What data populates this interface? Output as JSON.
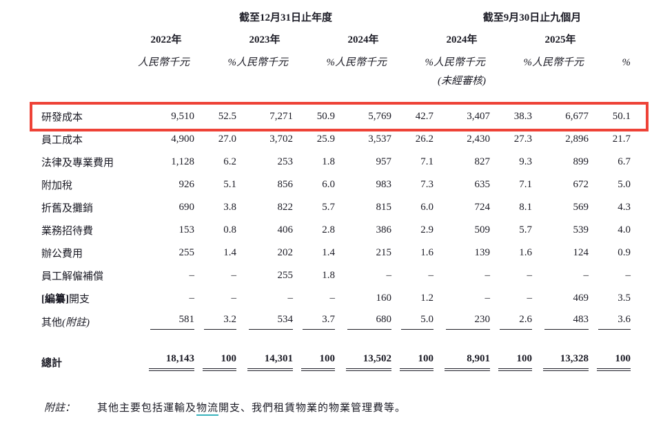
{
  "colors": {
    "text": "#1a1a24",
    "highlight_box": "#ee4237",
    "term_underline": "#38b2bc"
  },
  "table": {
    "period_headers": [
      "截至12月31日止年度",
      "截至9月30日止九個月"
    ],
    "years": [
      "2022年",
      "2023年",
      "2024年",
      "2024年",
      "2025年"
    ],
    "unit_label": "人民幣千元",
    "pct_label": "%",
    "unaudited_note": "(未經審核)",
    "rows": [
      {
        "label": "研發成本",
        "highlighted": true,
        "values": [
          "9,510",
          "52.5",
          "7,271",
          "50.9",
          "5,769",
          "42.7",
          "3,407",
          "38.3",
          "6,677",
          "50.1"
        ]
      },
      {
        "label": "員工成本",
        "values": [
          "4,900",
          "27.0",
          "3,702",
          "25.9",
          "3,537",
          "26.2",
          "2,430",
          "27.3",
          "2,896",
          "21.7"
        ]
      },
      {
        "label": "法律及專業費用",
        "values": [
          "1,128",
          "6.2",
          "253",
          "1.8",
          "957",
          "7.1",
          "827",
          "9.3",
          "899",
          "6.7"
        ]
      },
      {
        "label": "附加稅",
        "values": [
          "926",
          "5.1",
          "856",
          "6.0",
          "983",
          "7.3",
          "635",
          "7.1",
          "672",
          "5.0"
        ]
      },
      {
        "label": "折舊及攤銷",
        "values": [
          "690",
          "3.8",
          "822",
          "5.7",
          "815",
          "6.0",
          "724",
          "8.1",
          "569",
          "4.3"
        ]
      },
      {
        "label": "業務招待費",
        "values": [
          "153",
          "0.8",
          "406",
          "2.8",
          "386",
          "2.9",
          "509",
          "5.7",
          "539",
          "4.0"
        ]
      },
      {
        "label": "辦公費用",
        "values": [
          "255",
          "1.4",
          "202",
          "1.4",
          "215",
          "1.6",
          "139",
          "1.6",
          "124",
          "0.9"
        ]
      },
      {
        "label": "員工解僱補償",
        "values": [
          "–",
          "–",
          "255",
          "1.8",
          "–",
          "–",
          "–",
          "–",
          "–",
          "–"
        ]
      },
      {
        "label_bold_prefix": "[編纂]",
        "label": "開支",
        "values": [
          "–",
          "–",
          "–",
          "–",
          "160",
          "1.2",
          "–",
          "–",
          "469",
          "3.5"
        ]
      },
      {
        "label": "其他",
        "label_italic_suffix": "(附註)",
        "underlined": true,
        "values": [
          "581",
          "3.2",
          "534",
          "3.7",
          "680",
          "5.0",
          "230",
          "2.6",
          "483",
          "3.6"
        ]
      }
    ],
    "total": {
      "label": "總計",
      "values": [
        "18,143",
        "100",
        "14,301",
        "100",
        "13,502",
        "100",
        "8,901",
        "100",
        "13,328",
        "100"
      ]
    }
  },
  "footnote": {
    "prefix": "附註：",
    "text_before": "其他主要包括運輸及",
    "linked_term": "物流",
    "text_after": "開支、我們租賃物業的物業管理費等。"
  }
}
